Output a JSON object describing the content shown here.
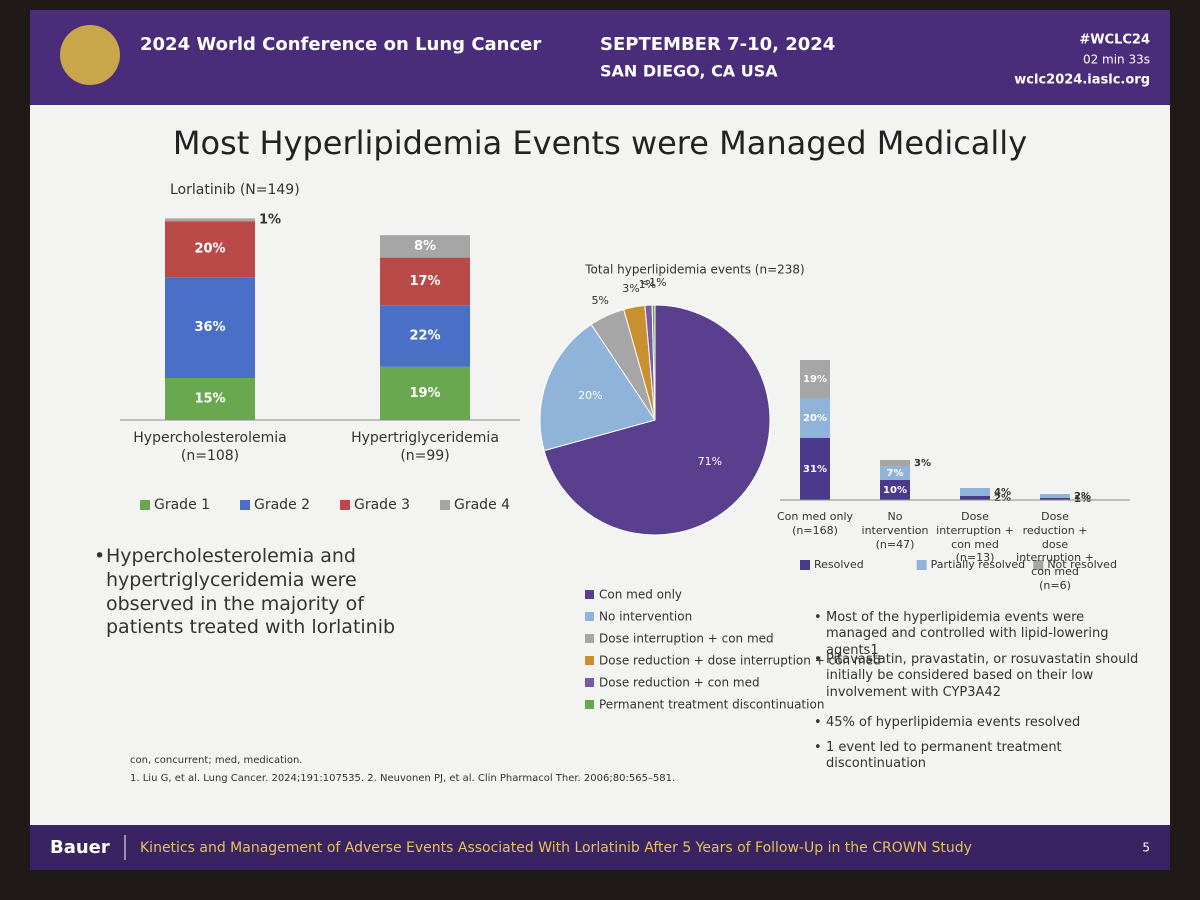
{
  "header": {
    "conference": "2024 World Conference on Lung Cancer",
    "dates": "SEPTEMBER 7-10, 2024",
    "location": "SAN DIEGO, CA USA",
    "hashtag": "#WCLC24",
    "timer": "02 min 33s",
    "website": "wclc2024.iaslc.org"
  },
  "title": "Most Hyperlipidemia Events were Managed Medically",
  "chart_data": [
    {
      "type": "bar",
      "stacked": true,
      "subtitle": "Lorlatinib (N=149)",
      "categories": [
        "Hypercholesterolemia (n=108)",
        "Hypertriglyceridemia (n=99)"
      ],
      "series": [
        {
          "name": "Grade 1",
          "color": "#6aa84f",
          "values": [
            15,
            19
          ],
          "value_labels": [
            "15%",
            "19%"
          ]
        },
        {
          "name": "Grade 2",
          "color": "#4a6fc7",
          "values": [
            36,
            22
          ],
          "value_labels": [
            "36%",
            "22%"
          ]
        },
        {
          "name": "Grade 3",
          "color": "#b94a48",
          "values": [
            20,
            17
          ],
          "value_labels": [
            "20%",
            "17%"
          ]
        },
        {
          "name": "Grade 4",
          "color": "#a6a6a6",
          "values": [
            1,
            8
          ],
          "value_labels": [
            "1%",
            "8%"
          ]
        }
      ]
    },
    {
      "type": "pie",
      "title": "Total hyperlipidemia events (n=238)",
      "categories": [
        "Con med only",
        "No intervention",
        "Dose interruption + con med",
        "Dose reduction + dose interruption + con med",
        "Dose reduction + con med",
        "Permanent treatment discontinuation"
      ],
      "values": [
        71,
        20,
        5,
        3,
        1,
        0.4
      ],
      "value_labels": [
        "71%",
        "20%",
        "5%",
        "3%",
        "1%",
        "<1%"
      ],
      "colors": [
        "#5b3f8f",
        "#8fb3d9",
        "#a6a6a6",
        "#c8902e",
        "#7a5aa8",
        "#6aa84f"
      ]
    },
    {
      "type": "bar",
      "stacked": true,
      "categories": [
        "Con med only (n=168)",
        "No intervention (n=47)",
        "Dose interruption + con med (n=13)",
        "Dose reduction + dose interruption + con med (n=6)"
      ],
      "series": [
        {
          "name": "Resolved",
          "color": "#4b3a8c",
          "values": [
            31,
            10,
            2,
            1
          ],
          "value_labels": [
            "31%",
            "10%",
            "2%",
            "1%"
          ]
        },
        {
          "name": "Partially resolved",
          "color": "#8fb3d9",
          "values": [
            20,
            7,
            4,
            2
          ],
          "value_labels": [
            "20%",
            "7%",
            "4%",
            "2%"
          ]
        },
        {
          "name": "Not resolved",
          "color": "#a6a6a6",
          "values": [
            19,
            3,
            null,
            null
          ],
          "value_labels": [
            "19%",
            "3%",
            null,
            null
          ]
        }
      ]
    }
  ],
  "left_bullets": [
    "Hypercholesterolemia and hypertriglyceridemia were observed in the majority of patients treated with lorlatinib"
  ],
  "right_bullets": [
    "Most of the hyperlipidemia events were managed and controlled with lipid-lowering agents1",
    "Pitavastatin, pravastatin, or rosuvastatin should initially be considered based on their low involvement with CYP3A42",
    "45% of hyperlipidemia events resolved",
    "1 event led to permanent treatment discontinuation"
  ],
  "footnotes": [
    "con, concurrent; med, medication.",
    "1. Liu G, et al. Lung Cancer. 2024;191:107535. 2. Neuvonen PJ, et al. Clin Pharmacol Ther. 2006;80:565–581."
  ],
  "footer": {
    "presenter": "Bauer",
    "study": "Kinetics and Management of Adverse Events Associated With Lorlatinib After 5 Years of Follow-Up in the CROWN Study",
    "page": "5"
  }
}
